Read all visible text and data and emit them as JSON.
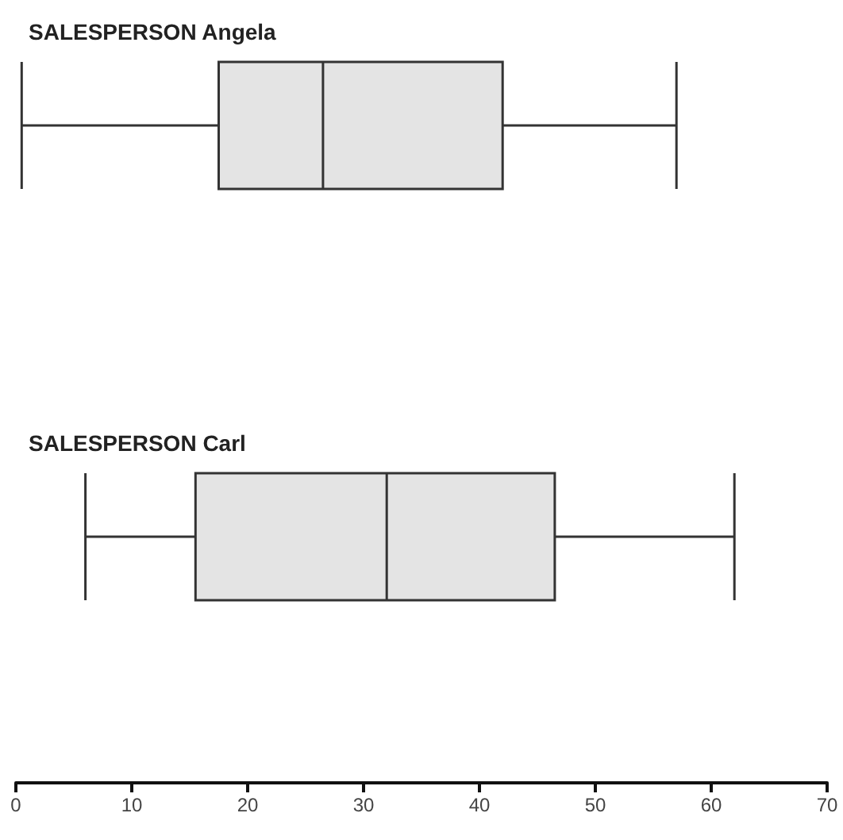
{
  "chart_data": {
    "type": "box",
    "orientation": "horizontal",
    "categories": [
      "SALESPERSON Angela",
      "SALESPERSON Carl"
    ],
    "color": "#e4e4e4",
    "boxes": [
      {
        "low": 0.5,
        "q1": 17.5,
        "median": 26.5,
        "q3": 42,
        "high": 57
      },
      {
        "low": 6,
        "q1": 15.5,
        "median": 32,
        "q3": 46.5,
        "high": 62
      }
    ],
    "xlim": [
      0,
      70
    ],
    "xticks": [
      0,
      10,
      20,
      30,
      40,
      50,
      60,
      70
    ]
  }
}
